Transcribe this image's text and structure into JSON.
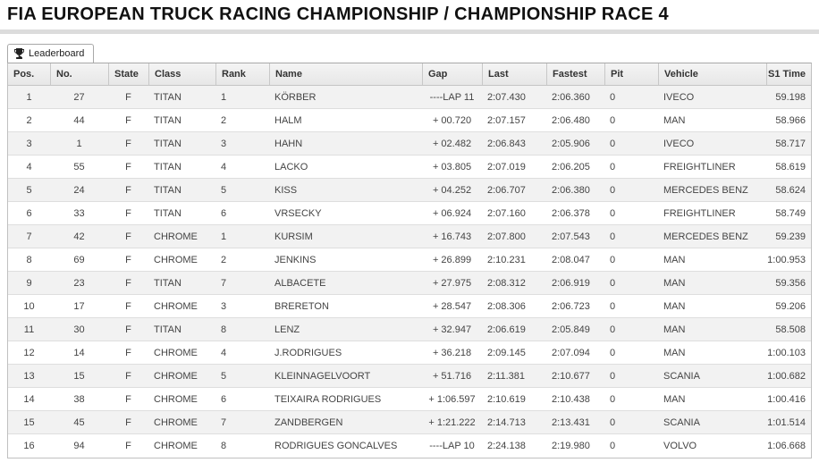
{
  "title": "FIA EUROPEAN TRUCK RACING CHAMPIONSHIP / CHAMPIONSHIP RACE 4",
  "tab": {
    "label": "Leaderboard",
    "icon": "trophy-icon"
  },
  "colors": {
    "header_bg": "#ededed",
    "row_alt_bg": "#f2f2f2",
    "table_border": "#c0c0c0",
    "text": "#444444"
  },
  "table": {
    "columns": [
      "Pos.",
      "No.",
      "State",
      "Class",
      "Rank",
      "Name",
      "Gap",
      "Last",
      "Fastest",
      "Pit",
      "Vehicle",
      "S1 Time"
    ],
    "rows": [
      [
        "1",
        "27",
        "F",
        "TITAN",
        "1",
        "KÖRBER",
        "----LAP 11",
        "2:07.430",
        "2:06.360",
        "0",
        "IVECO",
        "59.198"
      ],
      [
        "2",
        "44",
        "F",
        "TITAN",
        "2",
        "HALM",
        "+ 00.720",
        "2:07.157",
        "2:06.480",
        "0",
        "MAN",
        "58.966"
      ],
      [
        "3",
        "1",
        "F",
        "TITAN",
        "3",
        "HAHN",
        "+ 02.482",
        "2:06.843",
        "2:05.906",
        "0",
        "IVECO",
        "58.717"
      ],
      [
        "4",
        "55",
        "F",
        "TITAN",
        "4",
        "LACKO",
        "+ 03.805",
        "2:07.019",
        "2:06.205",
        "0",
        "FREIGHTLINER",
        "58.619"
      ],
      [
        "5",
        "24",
        "F",
        "TITAN",
        "5",
        "KISS",
        "+ 04.252",
        "2:06.707",
        "2:06.380",
        "0",
        "MERCEDES BENZ",
        "58.624"
      ],
      [
        "6",
        "33",
        "F",
        "TITAN",
        "6",
        "VRSECKY",
        "+ 06.924",
        "2:07.160",
        "2:06.378",
        "0",
        "FREIGHTLINER",
        "58.749"
      ],
      [
        "7",
        "42",
        "F",
        "CHROME",
        "1",
        "KURSIM",
        "+ 16.743",
        "2:07.800",
        "2:07.543",
        "0",
        "MERCEDES BENZ",
        "59.239"
      ],
      [
        "8",
        "69",
        "F",
        "CHROME",
        "2",
        "JENKINS",
        "+ 26.899",
        "2:10.231",
        "2:08.047",
        "0",
        "MAN",
        "1:00.953"
      ],
      [
        "9",
        "23",
        "F",
        "TITAN",
        "7",
        "ALBACETE",
        "+ 27.975",
        "2:08.312",
        "2:06.919",
        "0",
        "MAN",
        "59.356"
      ],
      [
        "10",
        "17",
        "F",
        "CHROME",
        "3",
        "BRERETON",
        "+ 28.547",
        "2:08.306",
        "2:06.723",
        "0",
        "MAN",
        "59.206"
      ],
      [
        "11",
        "30",
        "F",
        "TITAN",
        "8",
        "LENZ",
        "+ 32.947",
        "2:06.619",
        "2:05.849",
        "0",
        "MAN",
        "58.508"
      ],
      [
        "12",
        "14",
        "F",
        "CHROME",
        "4",
        "J.RODRIGUES",
        "+ 36.218",
        "2:09.145",
        "2:07.094",
        "0",
        "MAN",
        "1:00.103"
      ],
      [
        "13",
        "15",
        "F",
        "CHROME",
        "5",
        "KLEINNAGELVOORT",
        "+ 51.716",
        "2:11.381",
        "2:10.677",
        "0",
        "SCANIA",
        "1:00.682"
      ],
      [
        "14",
        "38",
        "F",
        "CHROME",
        "6",
        "TEIXAIRA RODRIGUES",
        "+ 1:06.597",
        "2:10.619",
        "2:10.438",
        "0",
        "MAN",
        "1:00.416"
      ],
      [
        "15",
        "45",
        "F",
        "CHROME",
        "7",
        "ZANDBERGEN",
        "+ 1:21.222",
        "2:14.713",
        "2:13.431",
        "0",
        "SCANIA",
        "1:01.514"
      ],
      [
        "16",
        "94",
        "F",
        "CHROME",
        "8",
        "RODRIGUES GONCALVES",
        "----LAP 10",
        "2:24.138",
        "2:19.980",
        "0",
        "VOLVO",
        "1:06.668"
      ]
    ]
  }
}
